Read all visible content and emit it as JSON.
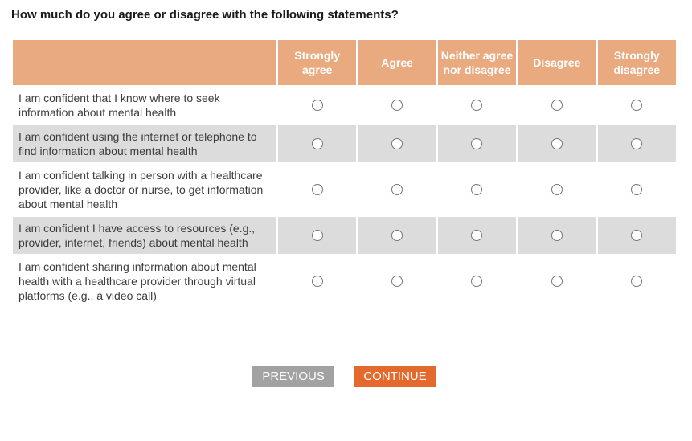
{
  "question": {
    "title": "How much do you agree or disagree with the following statements?"
  },
  "table": {
    "columns": [
      "Strongly agree",
      "Agree",
      "Neither agree nor disagree",
      "Disagree",
      "Strongly disagree"
    ],
    "rows": [
      {
        "statement": "I am confident that I know where to seek information about mental health",
        "selected": null
      },
      {
        "statement": "I am confident using the internet or telephone to find information about mental health",
        "selected": null
      },
      {
        "statement": "I am confident talking in person with a healthcare provider, like a doctor or nurse, to get information about mental health",
        "selected": null
      },
      {
        "statement": "I am confident I have access to resources (e.g., provider, internet, friends) about mental health",
        "selected": null
      },
      {
        "statement": "I am confident sharing information about mental health with a healthcare provider through virtual platforms (e.g., a video call)",
        "selected": null
      }
    ]
  },
  "buttons": {
    "previous": "PREVIOUS",
    "continue": "CONTINUE"
  },
  "colors": {
    "header_bg": "#e9aa80",
    "header_text": "#ffffff",
    "alt_row_bg": "#dcdcdc",
    "statement_text": "#3c3c3c",
    "radio_border": "#767676",
    "previous_bg": "#a2a2a2",
    "continue_bg": "#e3692c"
  }
}
